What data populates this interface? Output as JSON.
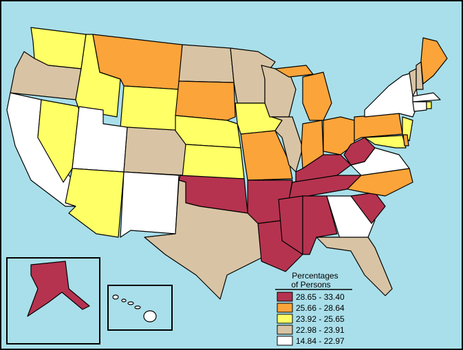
{
  "legend": {
    "title_lines": [
      "Percentages",
      "of Persons"
    ],
    "items": [
      {
        "label": "28.65 - 33.40",
        "color": "#b5334f"
      },
      {
        "label": "25.66 - 28.64",
        "color": "#fba43a"
      },
      {
        "label": "23.92 - 25.65",
        "color": "#ffff66"
      },
      {
        "label": "22.98 - 23.91",
        "color": "#d8c4a4"
      },
      {
        "label": "14.84 - 22.97",
        "color": "#ffffff"
      }
    ]
  },
  "background": "#a9dfea"
}
